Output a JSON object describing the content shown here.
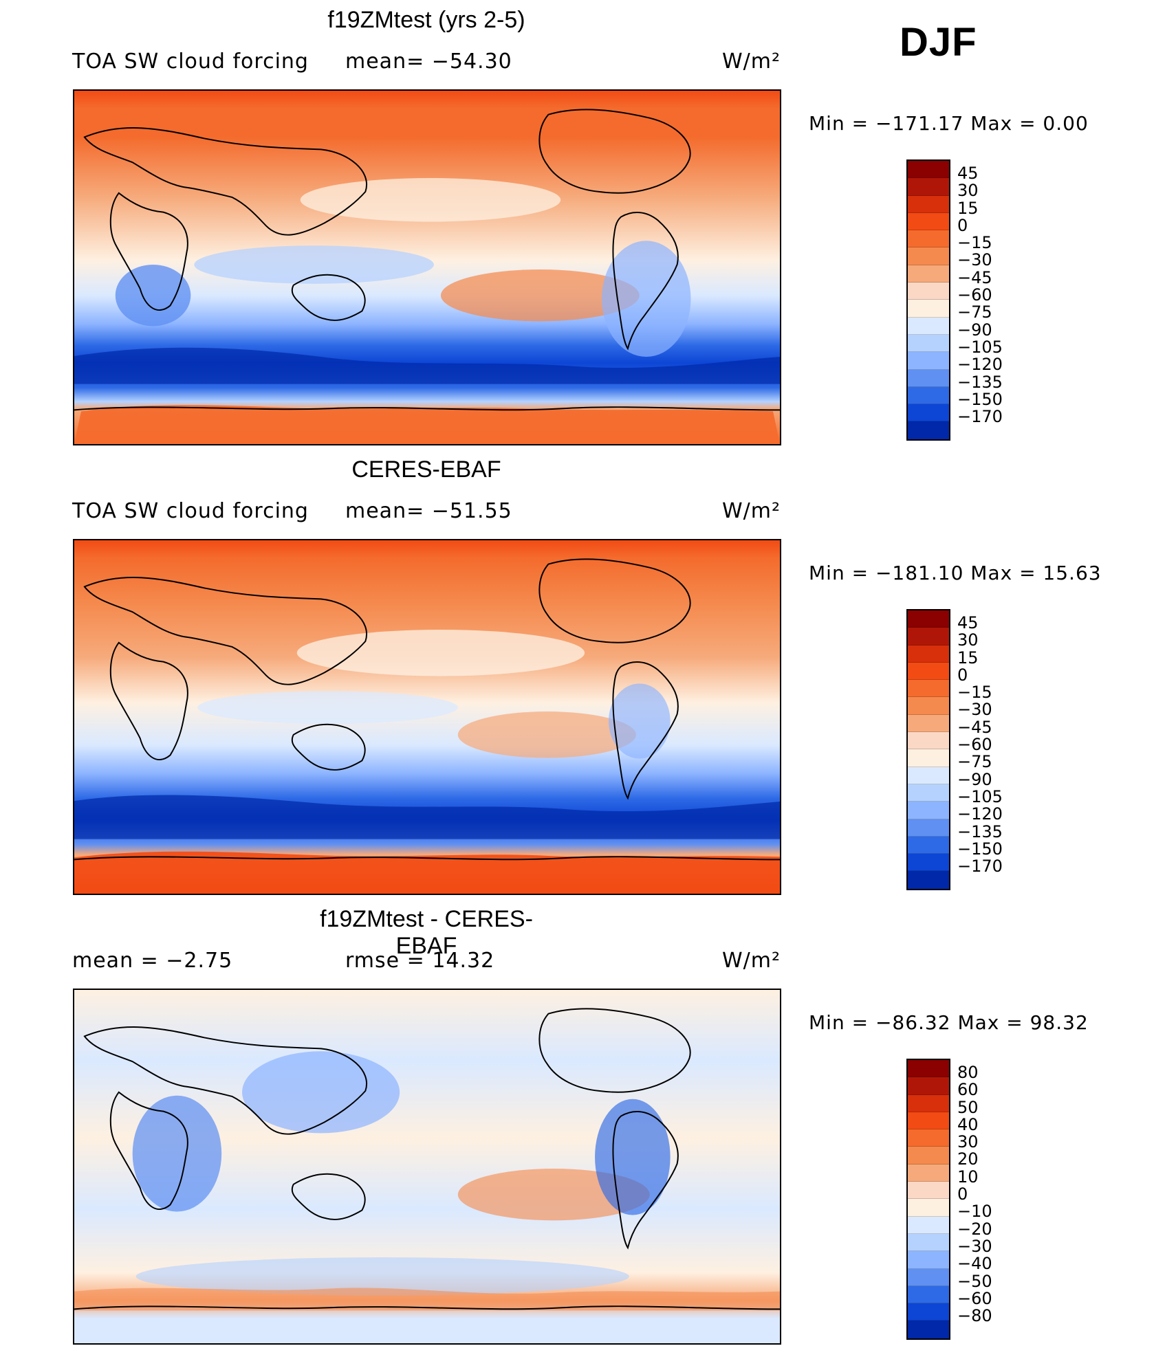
{
  "page": {
    "season_label": "DJF"
  },
  "panels": [
    {
      "title": "f19ZMtest (yrs 2-5)",
      "left_label": "TOA SW cloud forcing",
      "center_label": "mean= −54.30",
      "right_label": "W/m²",
      "min_max_text": "Min = −171.17 Max =   0.00",
      "colorbar": {
        "labels": [
          "45",
          "30",
          "15",
          "0",
          "−15",
          "−30",
          "−45",
          "−60",
          "−75",
          "−90",
          "−105",
          "−120",
          "−135",
          "−150",
          "−170"
        ],
        "colors": [
          "#8b0000",
          "#b01607",
          "#d7300b",
          "#f24b13",
          "#f46b2d",
          "#f58a4e",
          "#f6aa7b",
          "#fbd8c6",
          "#fef0e1",
          "#dae9ff",
          "#b5d2ff",
          "#8db4ff",
          "#5f90f2",
          "#2e6ae6",
          "#0d46d5",
          "#0028a8"
        ]
      }
    },
    {
      "title": "CERES-EBAF",
      "left_label": "TOA SW cloud forcing",
      "center_label": "mean= −51.55",
      "right_label": "W/m²",
      "min_max_text": "Min = −181.10 Max =  15.63",
      "colorbar": {
        "labels": [
          "45",
          "30",
          "15",
          "0",
          "−15",
          "−30",
          "−45",
          "−60",
          "−75",
          "−90",
          "−105",
          "−120",
          "−135",
          "−150",
          "−170"
        ],
        "colors": [
          "#8b0000",
          "#b01607",
          "#d7300b",
          "#f24b13",
          "#f46b2d",
          "#f58a4e",
          "#f6aa7b",
          "#fbd8c6",
          "#fef0e1",
          "#dae9ff",
          "#b5d2ff",
          "#8db4ff",
          "#5f90f2",
          "#2e6ae6",
          "#0d46d5",
          "#0028a8"
        ]
      }
    },
    {
      "title": "f19ZMtest - CERES-EBAF",
      "left_label": "mean =   −2.75",
      "center_label": "rmse =   14.32",
      "right_label": "W/m²",
      "min_max_text": "Min = −86.32 Max =  98.32",
      "colorbar": {
        "labels": [
          "80",
          "60",
          "50",
          "40",
          "30",
          "20",
          "10",
          "0",
          "−10",
          "−20",
          "−30",
          "−40",
          "−50",
          "−60",
          "−80"
        ],
        "colors": [
          "#8b0000",
          "#b01607",
          "#d7300b",
          "#f24b13",
          "#f46b2d",
          "#f58a4e",
          "#f6aa7b",
          "#fbd8c6",
          "#fef0e1",
          "#dae9ff",
          "#b5d2ff",
          "#8db4ff",
          "#5f90f2",
          "#2e6ae6",
          "#0d46d5",
          "#0028a8"
        ]
      }
    }
  ],
  "chart_data": [
    {
      "type": "heatmap",
      "title": "f19ZMtest (yrs 2-5)",
      "variable": "TOA SW cloud forcing",
      "units": "W/m²",
      "mean": -54.3,
      "min": -171.17,
      "max": 0.0,
      "contour_levels": [
        45,
        30,
        15,
        0,
        -15,
        -30,
        -45,
        -60,
        -75,
        -90,
        -105,
        -120,
        -135,
        -150,
        -170
      ]
    },
    {
      "type": "heatmap",
      "title": "CERES-EBAF",
      "variable": "TOA SW cloud forcing",
      "units": "W/m²",
      "mean": -51.55,
      "min": -181.1,
      "max": 15.63,
      "contour_levels": [
        45,
        30,
        15,
        0,
        -15,
        -30,
        -45,
        -60,
        -75,
        -90,
        -105,
        -120,
        -135,
        -150,
        -170
      ]
    },
    {
      "type": "heatmap",
      "title": "f19ZMtest - CERES-EBAF",
      "units": "W/m²",
      "mean": -2.75,
      "rmse": 14.32,
      "min": -86.32,
      "max": 98.32,
      "contour_levels": [
        80,
        60,
        50,
        40,
        30,
        20,
        10,
        0,
        -10,
        -20,
        -30,
        -40,
        -50,
        -60,
        -80
      ]
    }
  ]
}
